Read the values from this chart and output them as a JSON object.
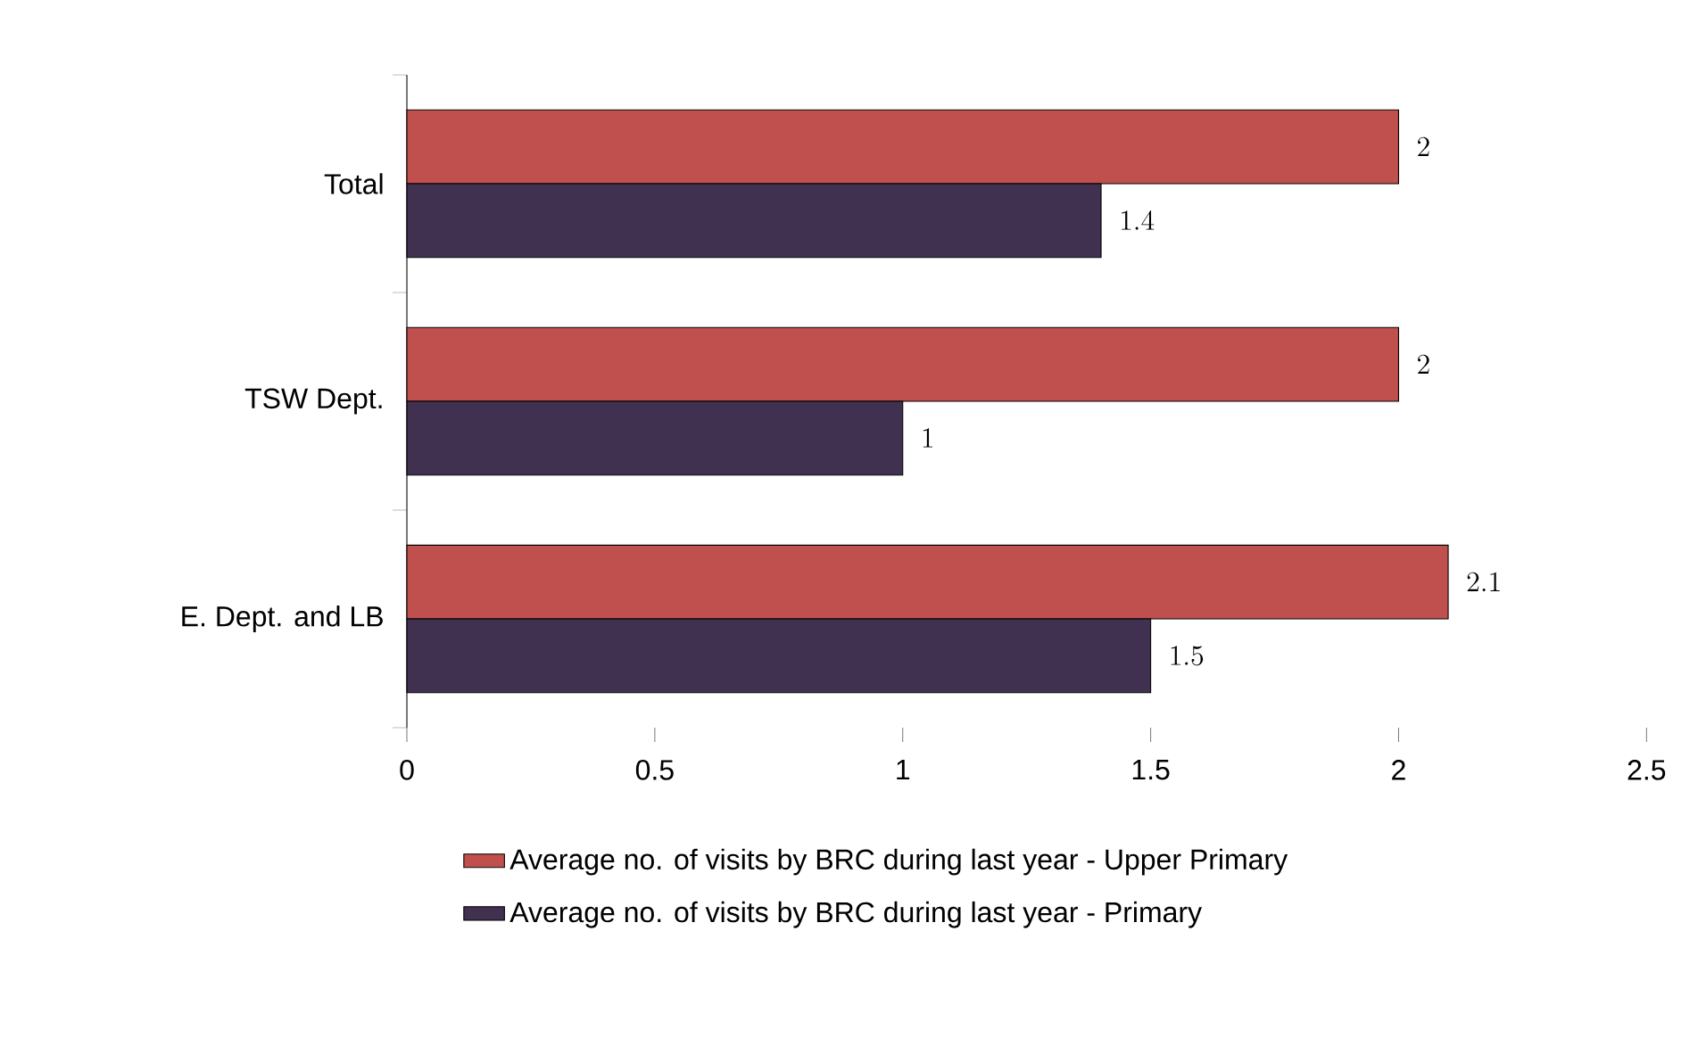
{
  "chart_data": {
    "type": "bar",
    "orientation": "horizontal",
    "categories": [
      "Total",
      "TSW Dept.",
      "E. Dept. and LB"
    ],
    "series": [
      {
        "name": "Average no. of visits by BRC during last year - Upper Primary",
        "color": "#c0504d",
        "values": [
          2,
          2,
          2.1
        ]
      },
      {
        "name": "Average no. of visits by BRC during last year - Primary",
        "color": "#403151",
        "values": [
          1.4,
          1,
          1.5
        ]
      }
    ],
    "xlim": [
      0,
      2.5
    ],
    "xticks": [
      0,
      0.5,
      1,
      1.5,
      2,
      2.5
    ],
    "data_labels": true,
    "legend": "bottom",
    "grid": false
  }
}
